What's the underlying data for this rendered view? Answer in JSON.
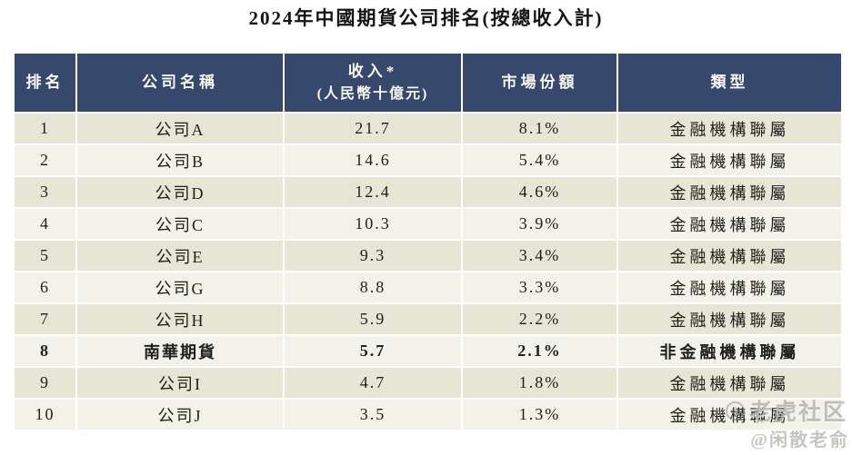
{
  "title": "2024年中國期貨公司排名(按總收入計)",
  "table": {
    "headers": [
      {
        "label": "排名"
      },
      {
        "label": "公司名稱"
      },
      {
        "label": "收入*",
        "sub": "(人民幣十億元)"
      },
      {
        "label": "市場份額"
      },
      {
        "label": "類型"
      }
    ],
    "rows": [
      {
        "rank": "1",
        "company": "公司A",
        "revenue": "21.7",
        "share": "8.1%",
        "type": "金融機構聯屬",
        "highlight": false
      },
      {
        "rank": "2",
        "company": "公司B",
        "revenue": "14.6",
        "share": "5.4%",
        "type": "金融機構聯屬",
        "highlight": false
      },
      {
        "rank": "3",
        "company": "公司D",
        "revenue": "12.4",
        "share": "4.6%",
        "type": "金融機構聯屬",
        "highlight": false
      },
      {
        "rank": "4",
        "company": "公司C",
        "revenue": "10.3",
        "share": "3.9%",
        "type": "金融機構聯屬",
        "highlight": false
      },
      {
        "rank": "5",
        "company": "公司E",
        "revenue": "9.3",
        "share": "3.4%",
        "type": "金融機構聯屬",
        "highlight": false
      },
      {
        "rank": "6",
        "company": "公司G",
        "revenue": "8.8",
        "share": "3.3%",
        "type": "金融機構聯屬",
        "highlight": false
      },
      {
        "rank": "7",
        "company": "公司H",
        "revenue": "5.9",
        "share": "2.2%",
        "type": "金融機構聯屬",
        "highlight": false
      },
      {
        "rank": "8",
        "company": "南華期貨",
        "revenue": "5.7",
        "share": "2.1%",
        "type": "非金融機構聯屬",
        "highlight": true
      },
      {
        "rank": "9",
        "company": "公司I",
        "revenue": "4.7",
        "share": "1.8%",
        "type": "金融機構聯屬",
        "highlight": false
      },
      {
        "rank": "10",
        "company": "公司J",
        "revenue": "3.5",
        "share": "1.3%",
        "type": "金融機構聯屬",
        "highlight": false
      }
    ]
  },
  "watermark": {
    "brand": "老虎社区",
    "handle": "@闲散老俞",
    "icon": "tiger-logo-icon"
  },
  "colors": {
    "header_bg": "#36496d",
    "header_text": "#f8f7f2",
    "row_odd": "#e6e5d6",
    "row_even": "#f2f2e8",
    "body_text": "#21211c",
    "watermark": "#7e7e76"
  }
}
